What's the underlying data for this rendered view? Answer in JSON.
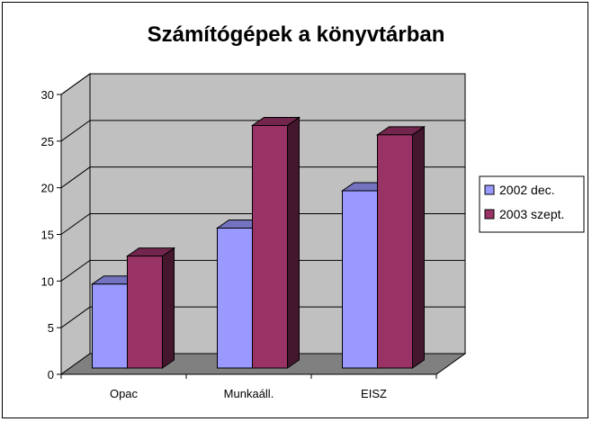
{
  "chart_data": {
    "type": "bar",
    "title": "Számítógépek a könyvtárban",
    "categories": [
      "Opac",
      "Munkaáll.",
      "EISZ"
    ],
    "series": [
      {
        "name": "2002 dec.",
        "values": [
          9,
          15,
          19
        ],
        "color": "#9999ff"
      },
      {
        "name": "2003 szept.",
        "values": [
          12,
          26,
          25
        ],
        "color": "#993366"
      }
    ],
    "ylim": [
      0,
      30
    ],
    "yticks": [
      "0",
      "5",
      "10",
      "15",
      "20",
      "25",
      "30"
    ],
    "grid": true,
    "legend_position": "right",
    "wall_color": "#c0c0c0",
    "floor_color": "#808080"
  }
}
